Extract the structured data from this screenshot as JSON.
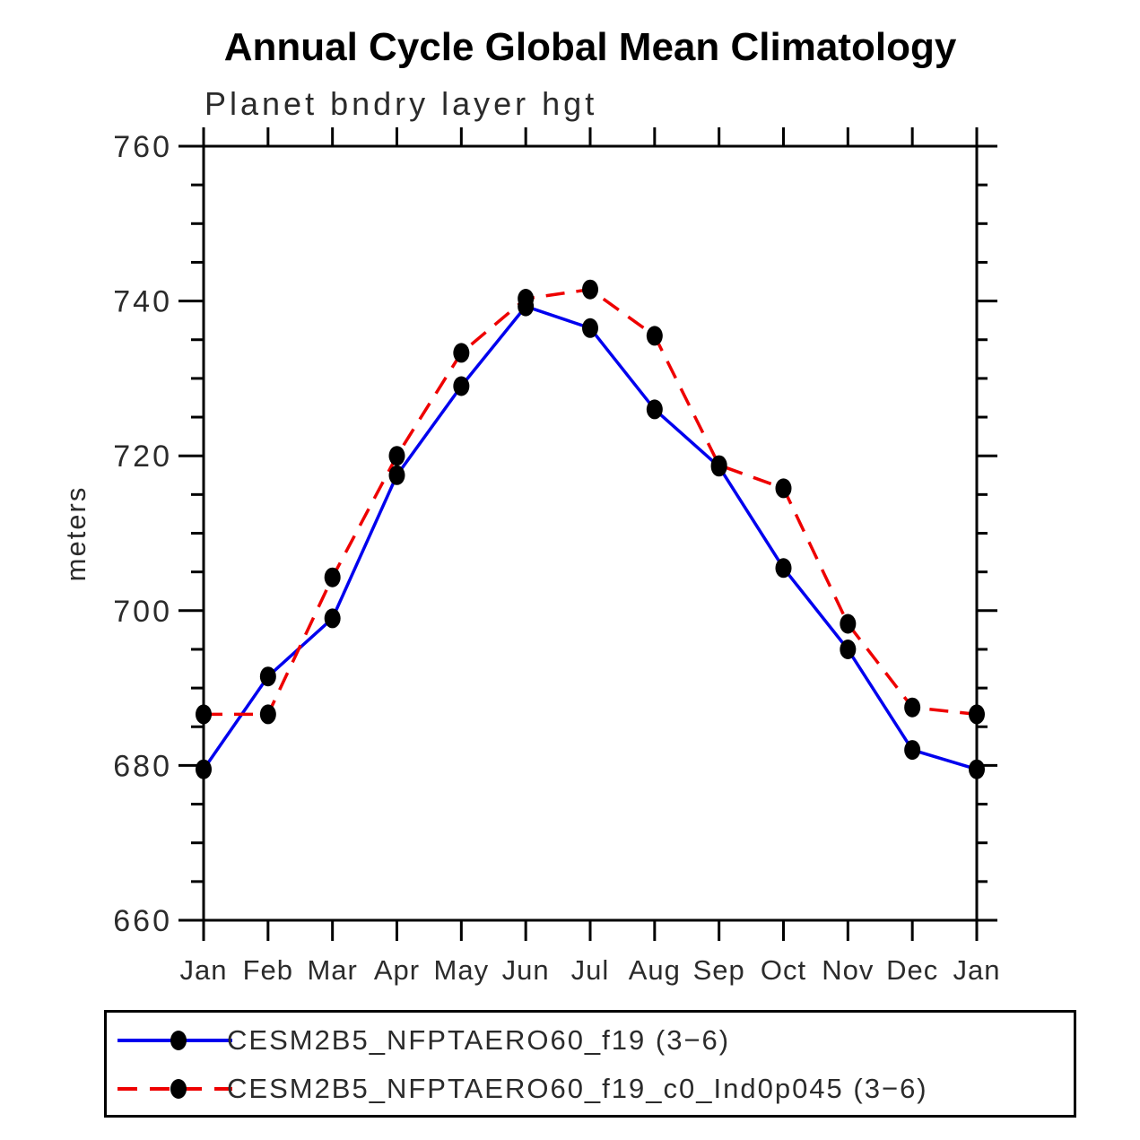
{
  "chart_data": {
    "type": "line",
    "title": "Annual Cycle Global Mean Climatology",
    "subtitle": "Planet bndry layer hgt",
    "ylabel": "meters",
    "x_tick_labels": [
      "Jan",
      "Feb",
      "Mar",
      "Apr",
      "May",
      "Jun",
      "Jul",
      "Aug",
      "Sep",
      "Oct",
      "Nov",
      "Dec",
      "Jan"
    ],
    "ylim": [
      660,
      760
    ],
    "y_major_ticks": [
      660,
      680,
      700,
      720,
      740,
      760
    ],
    "y_minor_step": 5,
    "grid": "off",
    "legend_position": "bottom-box",
    "marker": {
      "shape": "circle",
      "color": "#000000"
    },
    "series": [
      {
        "name": "CESM2B5_NFPTAERO60_f19 (3−6)",
        "color": "#0000ee",
        "style": "solid",
        "values": [
          679.5,
          691.5,
          699.0,
          717.5,
          729.0,
          739.3,
          736.5,
          726.0,
          718.6,
          705.5,
          695.0,
          682.0,
          679.5
        ]
      },
      {
        "name": "CESM2B5_NFPTAERO60_f19_c0_Ind0p045 (3−6)",
        "color": "#ee0000",
        "style": "dashed",
        "values": [
          686.6,
          686.6,
          704.3,
          720.0,
          733.3,
          740.3,
          741.5,
          735.5,
          718.8,
          715.8,
          698.3,
          687.5,
          686.6
        ]
      }
    ]
  }
}
